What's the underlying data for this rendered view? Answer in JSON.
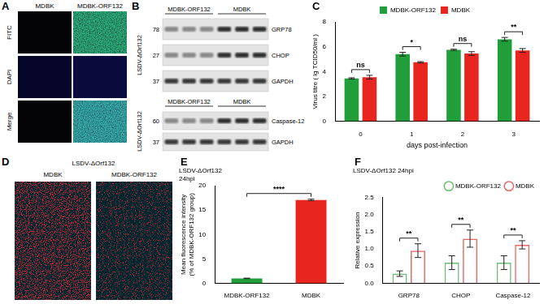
{
  "panels": {
    "A": {
      "label": "A",
      "columns": [
        "MDBK",
        "MDBK-ORF132"
      ],
      "rows": [
        "FITC",
        "DAPI",
        "Merge"
      ]
    },
    "B": {
      "label": "B",
      "blots": [
        {
          "treatment": "LSDV-ΔOrf132",
          "lanes": [
            "MDBK-ORF132",
            "MDBK"
          ],
          "rows": [
            {
              "marker": 78,
              "protein": "GRP78"
            },
            {
              "marker": 27,
              "protein": "CHOP"
            },
            {
              "marker": 37,
              "protein": "GAPDH"
            }
          ]
        },
        {
          "treatment": "LSDV-ΔOrf132",
          "lanes": [
            "MDBK-ORF132",
            "MDBK"
          ],
          "rows": [
            {
              "marker": 60,
              "protein": "Caspase-12"
            },
            {
              "marker": 37,
              "protein": "GAPDH"
            }
          ]
        }
      ]
    },
    "D": {
      "label": "D",
      "title": "LSDV-ΔOrf132",
      "columns": [
        "MDBK",
        "MDBK-ORF132"
      ]
    }
  },
  "chart_data": [
    {
      "panel": "C",
      "type": "bar",
      "categories": [
        "0",
        "1",
        "2",
        "3"
      ],
      "x_label": "days post-infection",
      "y_label": "Virus titre ( lg TCID50/ml )",
      "series": [
        {
          "name": "MDBK-ORF132",
          "color": "#1f9e3a",
          "values": [
            3.45,
            5.4,
            5.75,
            6.6
          ],
          "errors": [
            0.05,
            0.15,
            0.05,
            0.15
          ]
        },
        {
          "name": "MDBK",
          "color": "#e8251f",
          "values": [
            3.55,
            4.75,
            5.45,
            5.7
          ],
          "errors": [
            0.15,
            0.05,
            0.15,
            0.15
          ]
        }
      ],
      "significance": [
        "ns",
        "*",
        "ns",
        "**"
      ],
      "ylim": [
        0,
        8
      ],
      "yticks": [
        0,
        2,
        4,
        6,
        8
      ],
      "grid": false,
      "legend": "top"
    },
    {
      "panel": "E",
      "type": "bar",
      "title": [
        "LSDV-ΔOrf132",
        "24hpi"
      ],
      "categories": [
        "MDBK-ORF132",
        "MDBK"
      ],
      "values": [
        1,
        17.1
      ],
      "errors": [
        0.05,
        0.15
      ],
      "colors": [
        "#1f9e3a",
        "#e8251f"
      ],
      "significance": "****",
      "y_label": [
        "Mean fluorescence intensity",
        "(% of MDBK-ORF132 group)"
      ],
      "ylim": [
        0,
        20
      ],
      "yticks": [
        0,
        5,
        10,
        15,
        20
      ],
      "grid": false
    },
    {
      "panel": "F",
      "type": "bar",
      "title": "LSDV-ΔOrf132 24hpi",
      "categories": [
        "GRP78",
        "CHOP",
        "Caspase-12"
      ],
      "y_label": "Relative expression",
      "series": [
        {
          "name": "MDBK-ORF132",
          "color": "#6fbf73",
          "values": [
            0.28,
            0.6,
            0.6
          ],
          "errors": [
            0.08,
            0.2,
            0.2
          ]
        },
        {
          "name": "MDBK",
          "color": "#e86a6a",
          "values": [
            0.95,
            1.3,
            1.12
          ],
          "errors": [
            0.2,
            0.25,
            0.12
          ]
        }
      ],
      "significance": [
        "**",
        "**",
        "**"
      ],
      "ylim": [
        0,
        2.5
      ],
      "yticks": [
        {
          "value": 0,
          "label": "0.0"
        },
        0.5,
        {
          "value": 1,
          "label": "1.0"
        },
        1.5,
        {
          "value": 2,
          "label": "2.0"
        },
        2.5
      ],
      "grid": false,
      "legend": "top right"
    }
  ]
}
